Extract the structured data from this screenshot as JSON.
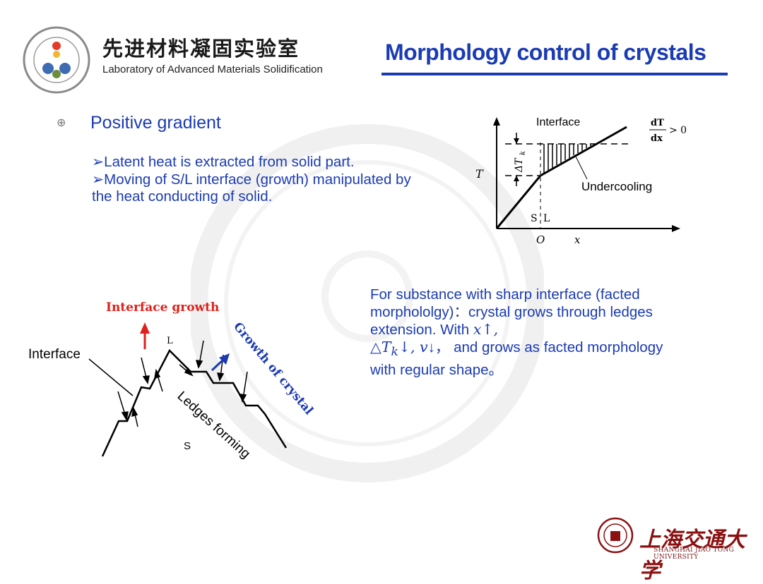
{
  "header": {
    "lab_name_cn": "先进材料凝固实验室",
    "lab_name_en": "Laboratory of Advanced Materials Solidification",
    "slide_title": "Morphology control of crystals"
  },
  "content": {
    "heading": "Positive gradient",
    "bullet1": "➢Latent heat is extracted  from solid part.",
    "bullet2": "➢Moving of S/L interface (growth) manipulated by the heat conducting of solid.",
    "para_a": "For substance with sharp interface (facted morpholo",
    "para_b": "lgy)：crystal grows through ledges extension. With ",
    "para_x": "x",
    "para_c": "↑,",
    "para_dt": "△T",
    "para_k": "k",
    "para_d": "↓, ",
    "para_v": "v",
    "para_e": "↓，  and grows as facted morphology with regular shape。"
  },
  "graph": {
    "interface_label": "Interface",
    "undercooling_label": "Undercooling",
    "y_axis": "T",
    "x_axis": "x",
    "origin": "O",
    "s_label": "S",
    "l_label": "L",
    "delta_label": "ΔT",
    "delta_sub": "k",
    "grad_num": "dT",
    "grad_den": "dx",
    "grad_rel": "> 0"
  },
  "sketch": {
    "interface_growth": "Interface growth",
    "interface": "Interface",
    "l_label": "L",
    "s_label": "S",
    "growth_of_crystal": "Growth of crystal",
    "ledges_forming": "Ledges forming"
  },
  "footer": {
    "university_cn": "上海交通大学",
    "university_en": "SHANGHAI JIAO TONG UNIVERSITY"
  },
  "colors": {
    "accent": "#1b3bb3",
    "red": "#e0201a",
    "university": "#8b1010"
  }
}
